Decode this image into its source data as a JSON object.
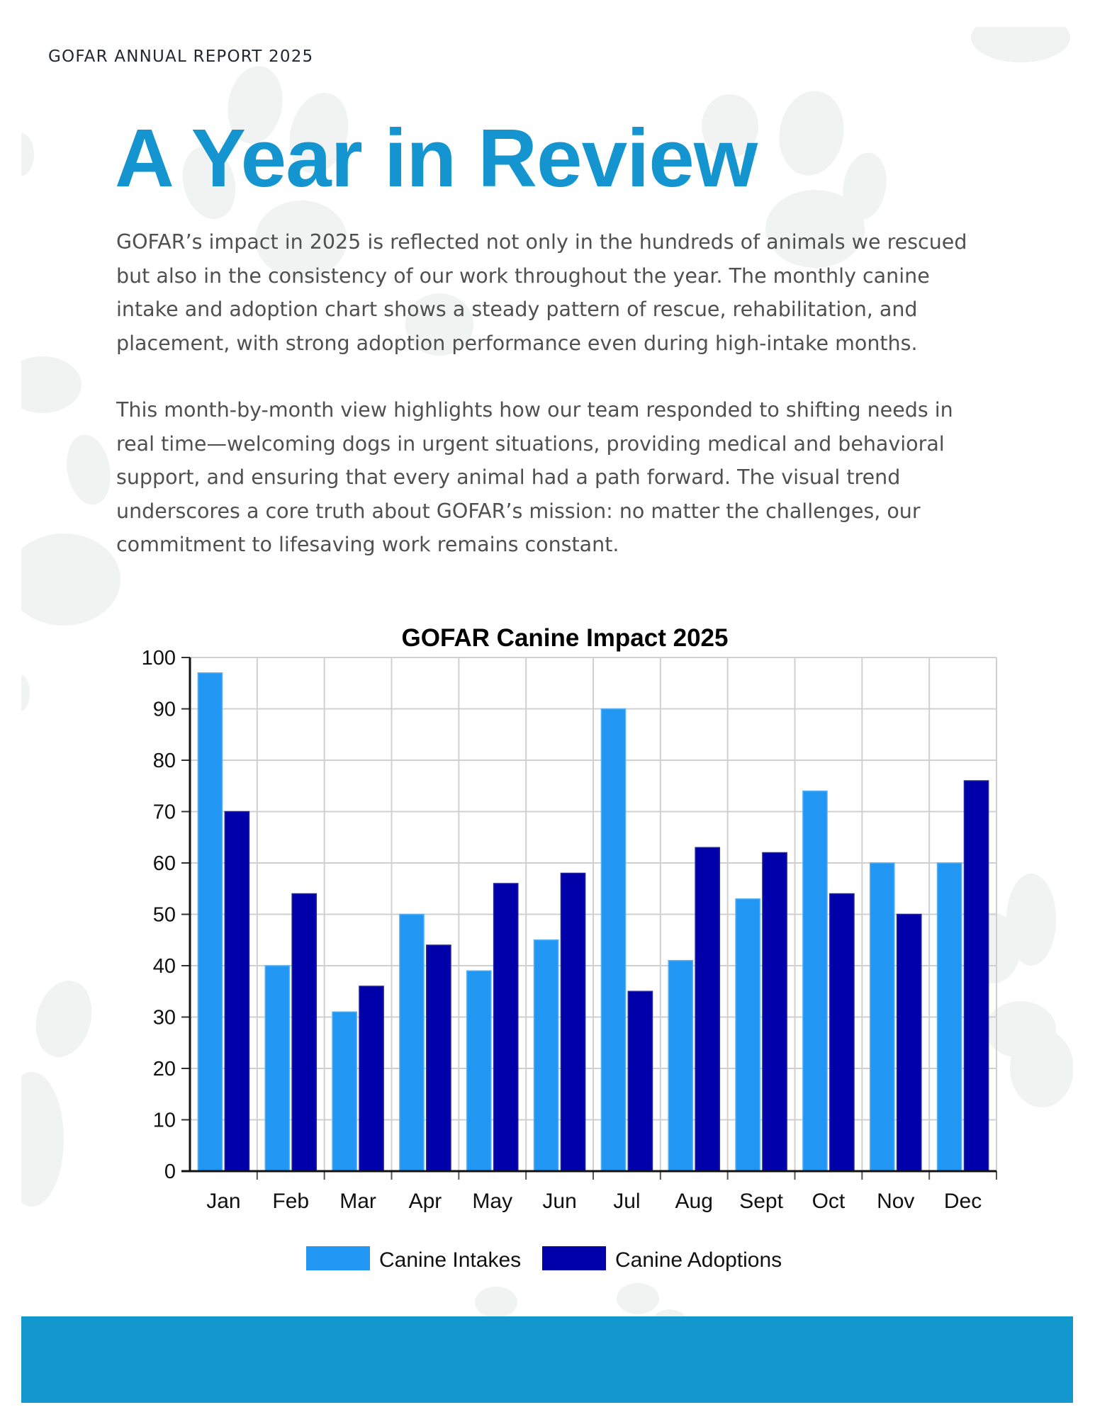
{
  "header": {
    "label": "GOFAR ANNUAL REPORT 2025"
  },
  "title": "A Year in Review",
  "paragraphs": [
    "GOFAR’s impact in 2025 is reflected not only in the hundreds of animals we rescued but also in the consistency of our work throughout the year. The monthly canine intake and adoption chart shows a steady pattern of rescue, rehabilitation, and placement, with strong adoption performance even during high-intake months.",
    "This month-by-month view highlights how our team responded to shifting needs in real time—welcoming dogs in urgent situations, providing medical and behavioral support, and ensuring that every animal had a path forward. The visual trend underscores a core truth about GOFAR’s mission: no matter the challenges, our commitment to lifesaving work remains constant."
  ],
  "colors": {
    "accent": "#1595cf",
    "footer": "#1297cf",
    "paw": "#eef1f0",
    "series_intakes": "#2196f3",
    "series_adoptions": "#0000aa"
  },
  "chart_data": {
    "type": "bar",
    "title": "GOFAR Canine Impact 2025",
    "xlabel": "",
    "ylabel": "",
    "ylim": [
      0,
      100
    ],
    "yticks": [
      0,
      10,
      20,
      30,
      40,
      50,
      60,
      70,
      80,
      90,
      100
    ],
    "grid": true,
    "legend": "bottom-center",
    "categories": [
      "Jan",
      "Feb",
      "Mar",
      "Apr",
      "May",
      "Jun",
      "Jul",
      "Aug",
      "Sept",
      "Oct",
      "Nov",
      "Dec"
    ],
    "series": [
      {
        "name": "Canine Intakes",
        "color": "#2196f3",
        "values": [
          97,
          40,
          31,
          50,
          39,
          45,
          90,
          41,
          53,
          74,
          60,
          60
        ]
      },
      {
        "name": "Canine Adoptions",
        "color": "#0000aa",
        "values": [
          70,
          54,
          36,
          44,
          56,
          58,
          35,
          63,
          62,
          54,
          50,
          76
        ]
      }
    ]
  }
}
